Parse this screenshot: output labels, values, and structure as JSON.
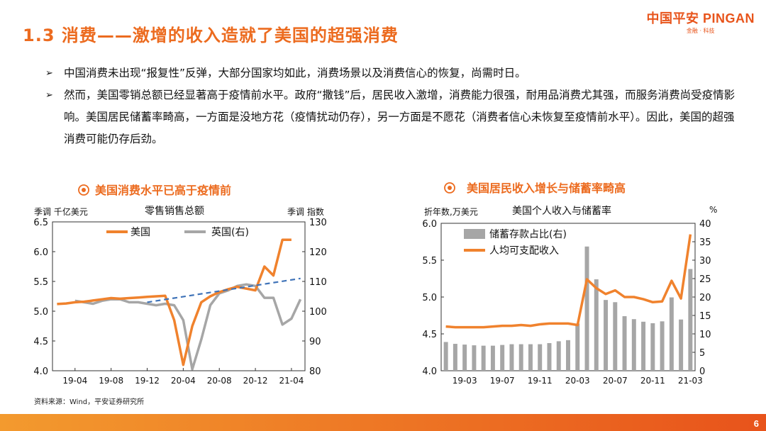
{
  "page": {
    "title": "1.3 消费——激增的收入造就了美国的超强消费",
    "logo_main": "中国平安 PINGAN",
    "logo_sub": "金融 · 科技",
    "bullets": [
      "中国消费未出现“报复性”反弹，大部分国家均如此，消费场景以及消费信心的恢复，尚需时日。",
      "然而，美国零销总额已经显著高于疫情前水平。政府“撒钱”后，居民收入激增，消费能力很强，耐用品消费尤其强，而服务消费尚受疫情影响。美国居民储蓄率畸高，一方面是没地方花（疫情扰动仍存），另一方面是不愿花（消费者信心未恢复至疫情前水平）。因此，美国的超强消费可能仍存后劲。"
    ],
    "source": "资料来源：Wind，平安证券研究所",
    "page_number": "6",
    "colors": {
      "accent": "#ec6b1f",
      "series_orange": "#f0822d",
      "series_gray": "#a6a6a6",
      "trend_blue": "#3f73b8"
    }
  },
  "chart_data": [
    {
      "type": "line",
      "heading": "美国消费水平已高于疫情前",
      "title": "零售销售总额",
      "left_unit": "季调 千亿美元",
      "right_unit": "季调 指数",
      "ylim": [
        4.0,
        6.5
      ],
      "y_ticks": [
        "4.0",
        "4.5",
        "5.0",
        "5.5",
        "6.0",
        "6.5"
      ],
      "y2lim": [
        80,
        130
      ],
      "y2_ticks": [
        "80",
        "90",
        "100",
        "110",
        "120",
        "130"
      ],
      "x_ticks": [
        "19-04",
        "19-08",
        "19-12",
        "20-04",
        "20-08",
        "20-12",
        "21-04"
      ],
      "x": [
        "19-02",
        "19-03",
        "19-04",
        "19-05",
        "19-06",
        "19-07",
        "19-08",
        "19-09",
        "19-10",
        "19-11",
        "19-12",
        "20-01",
        "20-02",
        "20-03",
        "20-04",
        "20-05",
        "20-06",
        "20-07",
        "20-08",
        "20-09",
        "20-10",
        "20-11",
        "20-12",
        "21-01",
        "21-02",
        "21-03",
        "21-04",
        "21-05"
      ],
      "series": [
        {
          "name": "美国",
          "axis": "left",
          "values": [
            5.12,
            5.13,
            5.15,
            5.16,
            5.18,
            5.2,
            5.22,
            5.21,
            5.22,
            5.23,
            5.24,
            5.25,
            5.26,
            4.85,
            4.1,
            4.75,
            5.15,
            5.25,
            5.32,
            5.37,
            5.41,
            5.38,
            5.35,
            5.75,
            5.6,
            6.2,
            6.2,
            null
          ]
        },
        {
          "name": "英国(右)",
          "axis": "right",
          "values": [
            null,
            null,
            103.5,
            103.0,
            102.5,
            103.5,
            104.0,
            104.0,
            103.0,
            103.0,
            102.5,
            102.0,
            102.5,
            102.0,
            97.0,
            80.5,
            90.5,
            102.0,
            106.0,
            107.0,
            108.5,
            109.0,
            108.5,
            104.5,
            104.5,
            95.5,
            97.5,
            104.0
          ]
        }
      ],
      "trendline": {
        "label": "",
        "from": [
          "19-12",
          5.15
        ],
        "to": [
          "21-05",
          5.55
        ]
      }
    },
    {
      "type": "bar+line",
      "heading": "美国居民收入增长与储蓄率畸高",
      "title": "美国个人收入与储蓄率",
      "left_unit": "折年数,万美元",
      "right_unit": "%",
      "ylim": [
        4.0,
        6.0
      ],
      "y_ticks": [
        "4.0",
        "4.5",
        "5.0",
        "5.5",
        "6.0"
      ],
      "y2lim": [
        0,
        40
      ],
      "y2_ticks": [
        "0",
        "5",
        "10",
        "15",
        "20",
        "25",
        "30",
        "35",
        "40"
      ],
      "x_ticks": [
        "19-03",
        "19-07",
        "19-11",
        "20-03",
        "20-07",
        "20-11",
        "21-03"
      ],
      "x": [
        "19-01",
        "19-02",
        "19-03",
        "19-04",
        "19-05",
        "19-06",
        "19-07",
        "19-08",
        "19-09",
        "19-10",
        "19-11",
        "19-12",
        "20-01",
        "20-02",
        "20-03",
        "20-04",
        "20-05",
        "20-06",
        "20-07",
        "20-08",
        "20-09",
        "20-10",
        "20-11",
        "20-12",
        "21-01",
        "21-02",
        "21-03"
      ],
      "series": [
        {
          "name": "储蓄存款占比(右)",
          "axis": "right",
          "kind": "bar",
          "values": [
            7.8,
            7.3,
            7.1,
            6.9,
            6.8,
            6.8,
            7.0,
            7.2,
            7.2,
            7.2,
            7.2,
            7.5,
            8.0,
            8.3,
            12.8,
            33.7,
            24.8,
            19.2,
            18.6,
            14.8,
            14.0,
            13.3,
            12.9,
            13.4,
            19.9,
            13.9,
            27.6
          ]
        },
        {
          "name": "人均可支配收入",
          "axis": "left",
          "kind": "line",
          "values": [
            4.6,
            4.59,
            4.59,
            4.59,
            4.59,
            4.6,
            4.61,
            4.61,
            4.62,
            4.61,
            4.63,
            4.64,
            4.64,
            4.64,
            4.62,
            5.24,
            5.12,
            5.04,
            5.09,
            5.0,
            5.0,
            4.97,
            4.93,
            4.94,
            5.22,
            4.98,
            5.85
          ]
        }
      ]
    }
  ]
}
